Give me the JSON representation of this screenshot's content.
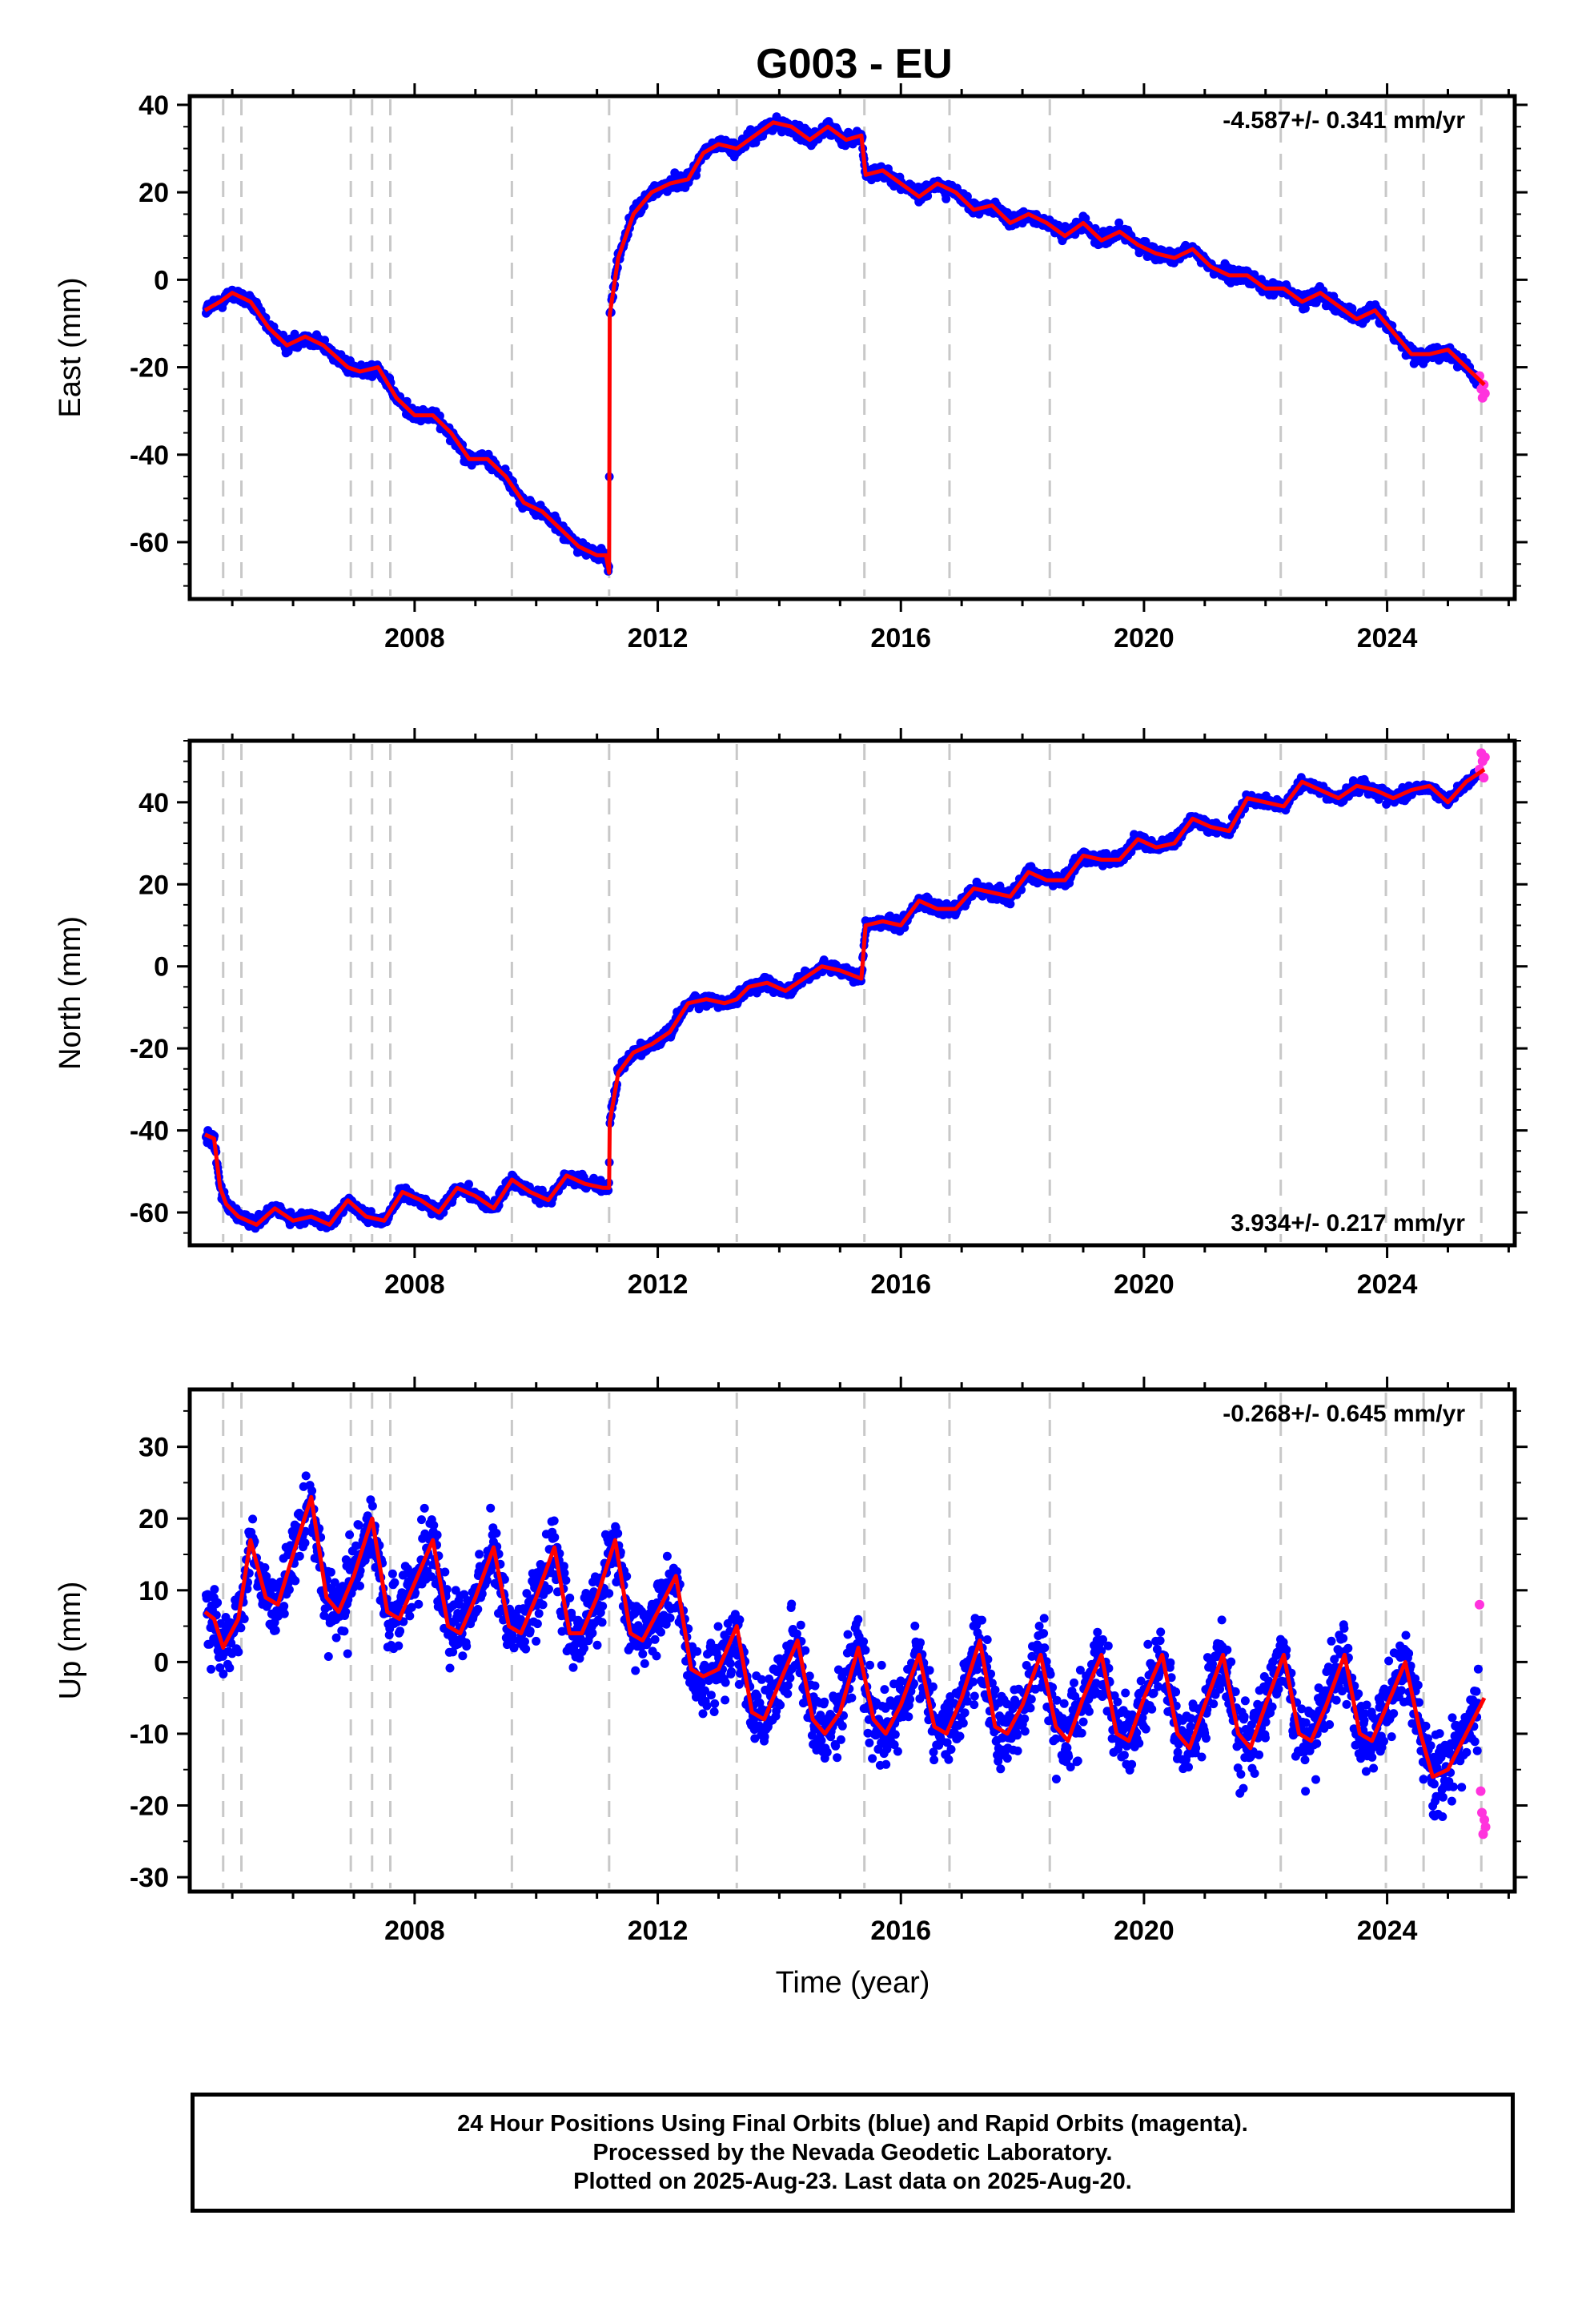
{
  "title": "G003 - EU",
  "x_axis": {
    "label": "Time (year)",
    "range": [
      2004.3,
      2026.1
    ],
    "tick_labels": [
      "2008",
      "2012",
      "2016",
      "2020",
      "2024"
    ],
    "tick_values": [
      2008,
      2012,
      2016,
      2020,
      2024
    ],
    "minor_ticks": [
      2005,
      2006,
      2007,
      2008,
      2009,
      2010,
      2011,
      2012,
      2013,
      2014,
      2015,
      2016,
      2017,
      2018,
      2019,
      2020,
      2021,
      2022,
      2023,
      2024,
      2025,
      2026
    ]
  },
  "event_lines": [
    2004.85,
    2005.15,
    2006.95,
    2007.3,
    2007.6,
    2009.6,
    2011.2,
    2013.3,
    2015.4,
    2016.8,
    2018.45,
    2022.25,
    2023.98,
    2024.6,
    2025.55
  ],
  "colors": {
    "final_orbits": "#0000ff",
    "rapid_orbits": "#ff33dd",
    "model": "#ff0000",
    "event_line": "#c8c8c8"
  },
  "chart_data": [
    {
      "type": "scatter",
      "name": "east",
      "ylabel": "East (mm)",
      "ylim": [
        -73,
        42
      ],
      "y_tick_labels": [
        "40",
        "20",
        "0",
        "-20",
        "-40",
        "-60"
      ],
      "y_tick_values": [
        40,
        20,
        0,
        -20,
        -40,
        -60
      ],
      "rate_label": "-4.587+/- 0.341 mm/yr",
      "rate_position": "top-right",
      "model": {
        "x": [
          2004.55,
          2004.8,
          2005.0,
          2005.3,
          2005.6,
          2005.9,
          2006.2,
          2006.5,
          2006.9,
          2007.1,
          2007.4,
          2007.7,
          2008.0,
          2008.3,
          2008.6,
          2008.9,
          2009.2,
          2009.5,
          2009.8,
          2010.1,
          2010.4,
          2010.7,
          2011.0,
          2011.15,
          2011.2,
          2011.21,
          2011.35,
          2011.6,
          2011.9,
          2012.2,
          2012.5,
          2012.75,
          2013.0,
          2013.3,
          2013.6,
          2013.9,
          2014.2,
          2014.5,
          2014.8,
          2015.1,
          2015.35,
          2015.42,
          2015.7,
          2016.0,
          2016.3,
          2016.6,
          2016.9,
          2017.2,
          2017.5,
          2017.8,
          2018.1,
          2018.4,
          2018.7,
          2019.0,
          2019.3,
          2019.6,
          2019.9,
          2020.2,
          2020.5,
          2020.8,
          2021.1,
          2021.4,
          2021.7,
          2022.0,
          2022.3,
          2022.6,
          2022.9,
          2023.2,
          2023.5,
          2023.8,
          2024.1,
          2024.4,
          2024.7,
          2025.0,
          2025.3,
          2025.6
        ],
        "y": [
          -7,
          -5,
          -3,
          -5,
          -11,
          -15,
          -13,
          -15,
          -20,
          -21,
          -20,
          -27,
          -31,
          -31,
          -35,
          -41,
          -41,
          -45,
          -51,
          -53,
          -57,
          -61,
          -63,
          -63,
          -67,
          -8,
          5,
          15,
          20,
          22,
          23,
          29,
          31,
          30,
          33,
          36,
          35,
          32,
          35,
          32,
          33,
          24,
          25,
          22,
          19,
          22,
          20,
          16,
          17,
          13,
          15,
          13,
          10,
          13,
          9,
          11,
          8,
          6,
          5,
          7,
          3,
          1,
          1,
          -2,
          -2,
          -5,
          -3,
          -6,
          -9,
          -7,
          -12,
          -17,
          -17,
          -16,
          -20,
          -24
        ]
      },
      "rapid_points": {
        "x": [
          2025.52,
          2025.55,
          2025.57,
          2025.59,
          2025.61
        ],
        "y": [
          -22,
          -25,
          -27,
          -24,
          -26
        ]
      }
    },
    {
      "type": "scatter",
      "name": "north",
      "ylabel": "North (mm)",
      "ylim": [
        -68,
        55
      ],
      "y_tick_labels": [
        "40",
        "20",
        "0",
        "-20",
        "-40",
        "-60"
      ],
      "y_tick_values": [
        40,
        20,
        0,
        -20,
        -40,
        -60
      ],
      "rate_label": "3.934+/- 0.217 mm/yr",
      "rate_position": "bottom-right",
      "model": {
        "x": [
          2004.55,
          2004.7,
          2004.8,
          2004.9,
          2005.1,
          2005.4,
          2005.7,
          2006.0,
          2006.3,
          2006.6,
          2006.9,
          2007.2,
          2007.5,
          2007.8,
          2008.1,
          2008.4,
          2008.7,
          2009.0,
          2009.3,
          2009.6,
          2009.9,
          2010.2,
          2010.5,
          2010.8,
          2011.1,
          2011.2,
          2011.21,
          2011.35,
          2011.6,
          2011.9,
          2012.2,
          2012.5,
          2012.8,
          2013.1,
          2013.3,
          2013.5,
          2013.8,
          2014.1,
          2014.4,
          2014.7,
          2015.0,
          2015.35,
          2015.42,
          2015.7,
          2016.0,
          2016.3,
          2016.6,
          2016.9,
          2017.2,
          2017.5,
          2017.8,
          2018.1,
          2018.4,
          2018.7,
          2019.0,
          2019.3,
          2019.6,
          2019.9,
          2020.2,
          2020.5,
          2020.8,
          2021.1,
          2021.4,
          2021.7,
          2022.0,
          2022.3,
          2022.6,
          2022.9,
          2023.2,
          2023.5,
          2023.8,
          2024.1,
          2024.4,
          2024.7,
          2025.0,
          2025.3,
          2025.6
        ],
        "y": [
          -41,
          -42,
          -54,
          -58,
          -61,
          -63,
          -59,
          -62,
          -61,
          -63,
          -57,
          -61,
          -62,
          -55,
          -57,
          -60,
          -54,
          -56,
          -59,
          -52,
          -55,
          -57,
          -51,
          -53,
          -54,
          -54,
          -38,
          -26,
          -21,
          -19,
          -16,
          -9,
          -8,
          -9,
          -8,
          -5,
          -4,
          -6,
          -3,
          0,
          -1,
          -3,
          10,
          11,
          10,
          16,
          14,
          14,
          19,
          18,
          17,
          23,
          21,
          21,
          27,
          26,
          26,
          31,
          29,
          30,
          36,
          34,
          33,
          41,
          40,
          39,
          45,
          43,
          41,
          44,
          43,
          41,
          43,
          44,
          40,
          45,
          48
        ]
      },
      "rapid_points": {
        "x": [
          2025.52,
          2025.55,
          2025.57,
          2025.59,
          2025.61
        ],
        "y": [
          48,
          52,
          50,
          46,
          51
        ]
      }
    },
    {
      "type": "scatter",
      "name": "up",
      "ylabel": "Up (mm)",
      "ylim": [
        -32,
        38
      ],
      "y_tick_labels": [
        "30",
        "20",
        "10",
        "0",
        "-10",
        "-20",
        "-30"
      ],
      "y_tick_values": [
        30,
        20,
        10,
        0,
        -10,
        -20,
        -30
      ],
      "rate_label": "-0.268+/- 0.645 mm/yr",
      "rate_position": "top-right",
      "model": {
        "x": [
          2004.55,
          2004.7,
          2004.85,
          2005.1,
          2005.3,
          2005.55,
          2005.75,
          2006.0,
          2006.3,
          2006.55,
          2006.75,
          2007.0,
          2007.3,
          2007.55,
          2007.75,
          2008.0,
          2008.3,
          2008.55,
          2008.75,
          2009.0,
          2009.3,
          2009.55,
          2009.75,
          2010.0,
          2010.3,
          2010.55,
          2010.75,
          2011.0,
          2011.3,
          2011.55,
          2011.75,
          2012.0,
          2012.3,
          2012.55,
          2012.75,
          2013.0,
          2013.3,
          2013.55,
          2013.75,
          2014.0,
          2014.3,
          2014.55,
          2014.75,
          2015.0,
          2015.3,
          2015.55,
          2015.75,
          2016.0,
          2016.3,
          2016.55,
          2016.75,
          2017.0,
          2017.3,
          2017.55,
          2017.75,
          2018.0,
          2018.3,
          2018.55,
          2018.75,
          2019.0,
          2019.3,
          2019.55,
          2019.75,
          2020.0,
          2020.3,
          2020.55,
          2020.75,
          2021.0,
          2021.3,
          2021.55,
          2021.75,
          2022.0,
          2022.3,
          2022.55,
          2022.75,
          2023.0,
          2023.3,
          2023.55,
          2023.75,
          2024.0,
          2024.3,
          2024.55,
          2024.75,
          2025.0,
          2025.3,
          2025.6
        ],
        "y": [
          7,
          6,
          2,
          6,
          17,
          9,
          8,
          15,
          23,
          9,
          7,
          12,
          20,
          7,
          6,
          11,
          17,
          5,
          4,
          9,
          16,
          5,
          4,
          9,
          16,
          4,
          4,
          9,
          17,
          4,
          3,
          7,
          12,
          -1,
          -2,
          -1,
          5,
          -7,
          -8,
          -3,
          3,
          -8,
          -10,
          -7,
          2,
          -8,
          -10,
          -6,
          1,
          -9,
          -10,
          -5,
          3,
          -9,
          -10,
          -6,
          1,
          -9,
          -11,
          -5,
          1,
          -10,
          -11,
          -5,
          1,
          -10,
          -12,
          -6,
          1,
          -10,
          -12,
          -6,
          1,
          -10,
          -11,
          -6,
          1,
          -10,
          -11,
          -6,
          0,
          -10,
          -16,
          -15,
          -10,
          -5
        ]
      },
      "rapid_points": {
        "x": [
          2025.52,
          2025.54,
          2025.56,
          2025.58,
          2025.6,
          2025.62
        ],
        "y": [
          8,
          -18,
          -21,
          -24,
          -22,
          -23
        ]
      }
    }
  ],
  "footer": {
    "line1": "24 Hour Positions Using Final Orbits (blue) and Rapid Orbits (magenta).",
    "line2": "Processed by the Nevada Geodetic Laboratory.",
    "line3": "Plotted on 2025-Aug-23. Last data on 2025-Aug-20."
  }
}
